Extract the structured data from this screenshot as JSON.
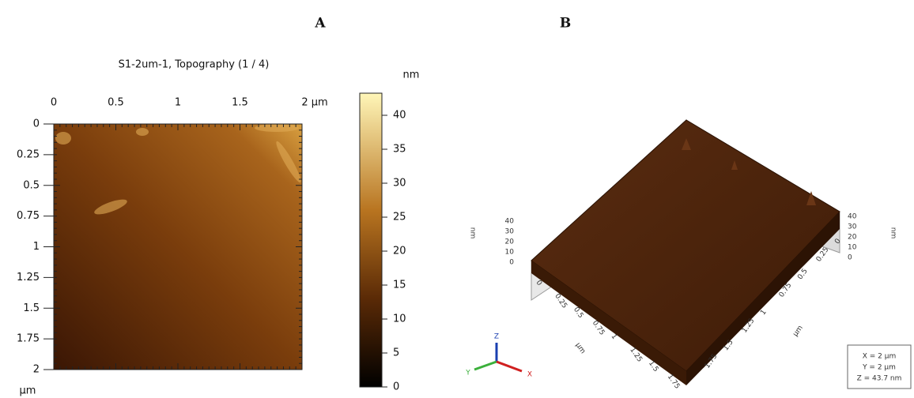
{
  "panel_a": {
    "label": "A",
    "title": "S1-2um-1, Topography (1 / 4)",
    "x_ticks": [
      "0",
      "0.5",
      "1",
      "1.5",
      "2 µm"
    ],
    "y_ticks": [
      "0",
      "0.25",
      "0.5",
      "0.75",
      "1",
      "1.25",
      "1.5",
      "1.75",
      "2"
    ],
    "y_unit": "µm",
    "colorbar_unit": "nm",
    "colorbar_ticks": [
      "0",
      "5",
      "10",
      "15",
      "20",
      "25",
      "30",
      "35",
      "40"
    ]
  },
  "panel_b": {
    "label": "B",
    "z_ticks": [
      "40",
      "30",
      "20",
      "10",
      "0"
    ],
    "z_unit": "nm",
    "x_axis_ticks": [
      "0",
      "0.25",
      "0.5",
      "0.75",
      "1",
      "1.25",
      "1.5",
      "1.75"
    ],
    "x_axis_unit": "µm",
    "y_axis_ticks": [
      "0",
      "0.25",
      "0.5",
      "0.75",
      "1",
      "1.25",
      "1.5",
      "1.75"
    ],
    "y_axis_unit": "µm",
    "triad": [
      "X",
      "Y",
      "Z"
    ],
    "info": [
      "X = 2 µm",
      "Y = 2 µm",
      "Z = 43.7 nm"
    ]
  }
}
